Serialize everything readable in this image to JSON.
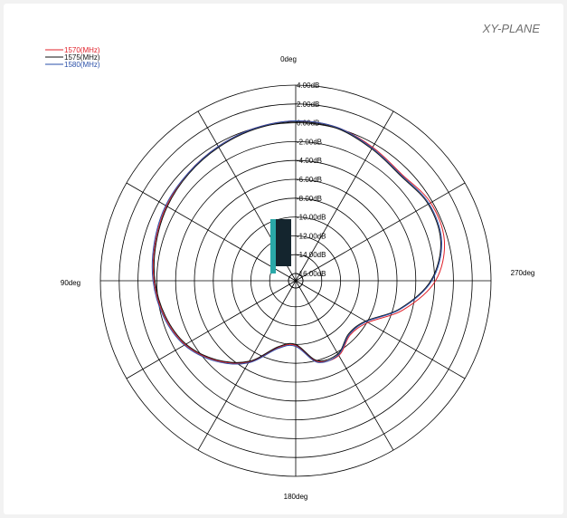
{
  "header": {
    "plane_label": "XY-PLANE"
  },
  "chart_data": {
    "type": "polar",
    "title": "",
    "angular_axis": {
      "direction": "counter-clockwise",
      "zero_at": "top",
      "labels": [
        "0deg",
        "90deg",
        "180deg",
        "270deg"
      ],
      "spoke_step_deg": 30
    },
    "radial_axis": {
      "unit": "dB",
      "ticks": [
        "4.00dB",
        "2.00dB",
        "0.00dB",
        "-2.00dB",
        "-4.00dB",
        "-6.00dB",
        "-8.00dB",
        "-10.00dB",
        "-12.00dB",
        "-14.00dB",
        "-16.00dB"
      ],
      "tick_values": [
        4,
        2,
        0,
        -2,
        -4,
        -6,
        -8,
        -10,
        -12,
        -14,
        -16
      ],
      "range": [
        -16,
        4
      ]
    },
    "legend_placement": "top-left",
    "series": [
      {
        "name": "1570(MHz)",
        "color": "#e0202a",
        "angles_deg": [
          0,
          15,
          30,
          45,
          60,
          75,
          90,
          105,
          120,
          135,
          150,
          165,
          180,
          195,
          210,
          225,
          240,
          255,
          270,
          285,
          300,
          315,
          330,
          345,
          360
        ],
        "gain_db": [
          0.2,
          0.0,
          -0.3,
          -0.6,
          -0.9,
          -1.3,
          -1.7,
          -2.3,
          -3.2,
          -4.8,
          -6.8,
          -9.4,
          -9.9,
          -7.9,
          -7.6,
          -8.6,
          -7.9,
          -4.9,
          -1.9,
          -0.4,
          -0.2,
          -0.8,
          -0.4,
          0.1,
          0.2
        ]
      },
      {
        "name": "1575(MHz)",
        "color": "#111111",
        "angles_deg": [
          0,
          15,
          30,
          45,
          60,
          75,
          90,
          105,
          120,
          135,
          150,
          165,
          180,
          195,
          210,
          225,
          240,
          255,
          270,
          285,
          300,
          315,
          330,
          345,
          360
        ],
        "gain_db": [
          0.1,
          -0.1,
          -0.4,
          -0.7,
          -1.0,
          -1.4,
          -1.8,
          -2.4,
          -3.3,
          -4.9,
          -6.9,
          -9.5,
          -10.0,
          -8.0,
          -7.8,
          -8.8,
          -8.2,
          -5.3,
          -2.4,
          -0.8,
          -0.5,
          -1.0,
          -0.6,
          0.0,
          0.1
        ]
      },
      {
        "name": "1580(MHz)",
        "color": "#2a4fa8",
        "angles_deg": [
          0,
          15,
          30,
          45,
          60,
          75,
          90,
          105,
          120,
          135,
          150,
          165,
          180,
          195,
          210,
          225,
          240,
          255,
          270,
          285,
          300,
          315,
          330,
          345,
          360
        ],
        "gain_db": [
          0.2,
          0.0,
          -0.3,
          -0.6,
          -0.8,
          -1.2,
          -1.6,
          -2.2,
          -3.1,
          -4.7,
          -6.7,
          -9.3,
          -9.8,
          -7.8,
          -7.7,
          -8.7,
          -8.1,
          -5.2,
          -2.3,
          -0.7,
          -0.4,
          -0.9,
          -0.5,
          0.1,
          0.2
        ]
      }
    ],
    "overlay_bars": [
      {
        "color": "#2aa8a8"
      },
      {
        "color": "#14252e"
      }
    ]
  }
}
